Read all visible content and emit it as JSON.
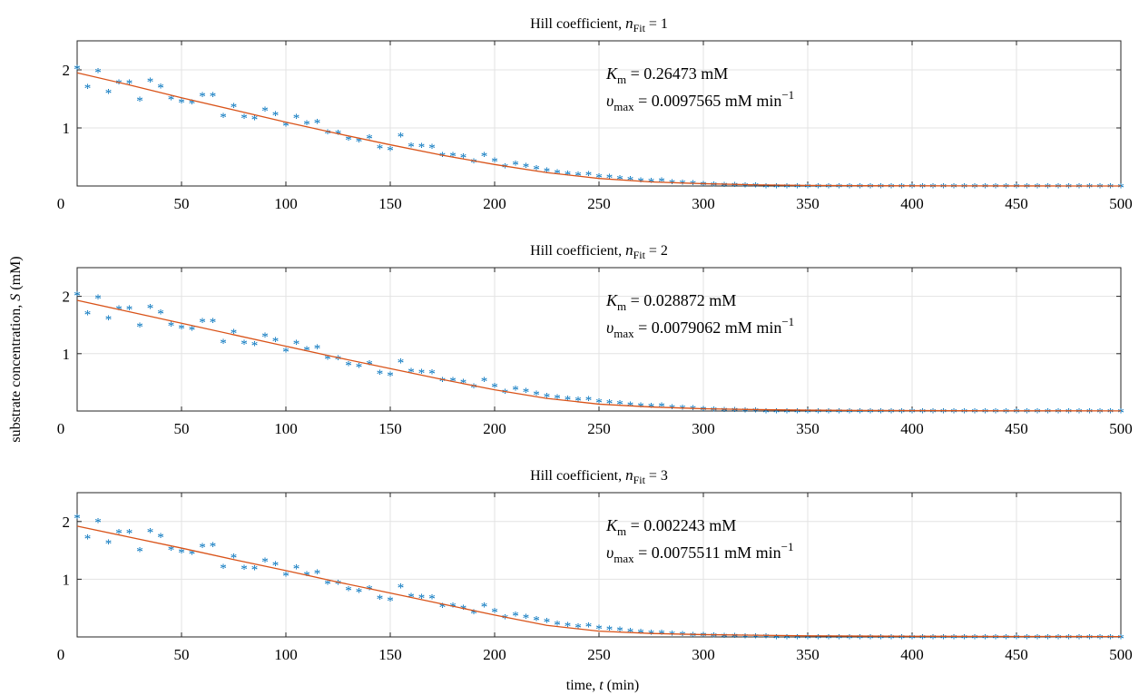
{
  "figure": {
    "ylabel_text": "substrate concentration, ",
    "ylabel_var": "S",
    "ylabel_unit": " (mM)",
    "xlabel_text": "time, ",
    "xlabel_var": "t",
    "xlabel_unit": " (min)"
  },
  "chart_data": [
    {
      "type": "scatter",
      "title_prefix": "Hill coefficient, ",
      "title_var": "n",
      "title_sub": "Fit",
      "title_suffix": " = 1",
      "xlim": [
        0,
        500
      ],
      "ylim": [
        0,
        2.5
      ],
      "xticks": [
        0,
        50,
        100,
        150,
        200,
        250,
        300,
        350,
        400,
        450,
        500
      ],
      "yticks": [
        1,
        2
      ],
      "grid": true,
      "annotation": {
        "km_var": "K",
        "km_sub": "m",
        "km_text": " = 0.26473 mM",
        "vmax_var": "υ",
        "vmax_sub": "max",
        "vmax_text": " = 0.0097565 mM min",
        "vmax_sup": "−1"
      },
      "series": [
        {
          "style": "markers",
          "color": "#0072BD",
          "x": [
            0,
            5,
            10,
            15,
            20,
            25,
            30,
            35,
            40,
            45,
            50,
            55,
            60,
            65,
            70,
            75,
            80,
            85,
            90,
            95,
            100,
            105,
            110,
            115,
            120,
            125,
            130,
            135,
            140,
            145,
            150,
            155,
            160,
            165,
            170,
            175,
            180,
            185,
            190,
            195,
            200,
            205,
            210,
            215,
            220,
            225,
            230,
            235,
            240,
            245,
            250,
            255,
            260,
            265,
            270,
            275,
            280,
            285,
            290,
            295,
            300,
            305,
            310,
            315,
            320,
            325,
            330,
            335,
            340,
            345,
            350,
            355,
            360,
            365,
            370,
            375,
            380,
            385,
            390,
            395,
            400,
            405,
            410,
            415,
            420,
            425,
            430,
            435,
            440,
            445,
            450,
            455,
            460,
            465,
            470,
            475,
            480,
            485,
            490,
            495,
            500
          ],
          "y": [
            2.05,
            1.72,
            1.99,
            1.63,
            1.8,
            1.8,
            1.5,
            1.83,
            1.73,
            1.52,
            1.47,
            1.45,
            1.58,
            1.58,
            1.22,
            1.39,
            1.2,
            1.18,
            1.33,
            1.25,
            1.07,
            1.2,
            1.09,
            1.12,
            0.94,
            0.93,
            0.83,
            0.8,
            0.85,
            0.68,
            0.65,
            0.88,
            0.71,
            0.7,
            0.69,
            0.55,
            0.55,
            0.52,
            0.44,
            0.55,
            0.45,
            0.35,
            0.4,
            0.36,
            0.32,
            0.28,
            0.25,
            0.23,
            0.21,
            0.22,
            0.18,
            0.17,
            0.15,
            0.13,
            0.11,
            0.1,
            0.11,
            0.08,
            0.07,
            0.06,
            0.05,
            0.04,
            0.03,
            0.03,
            0.02,
            0.02,
            0.01,
            0.01,
            0.01,
            0.01,
            0.01,
            0.01,
            0.01,
            0.01,
            0.01,
            0.01,
            0.01,
            0.01,
            0.01,
            0.01,
            0.01,
            0.01,
            0.01,
            0.01,
            0.01,
            0.01,
            0.01,
            0.01,
            0.01,
            0.01,
            0.01,
            0.01,
            0.01,
            0.01,
            0.01,
            0.01,
            0.01,
            0.01,
            0.01,
            0.01,
            0.01
          ]
        },
        {
          "style": "line",
          "color": "#D95319",
          "x": [
            0,
            25,
            50,
            75,
            100,
            125,
            150,
            175,
            200,
            225,
            250,
            275,
            300,
            325,
            350,
            375,
            400,
            425,
            450,
            475,
            500
          ],
          "y": [
            1.95,
            1.74,
            1.52,
            1.31,
            1.1,
            0.9,
            0.71,
            0.53,
            0.37,
            0.23,
            0.13,
            0.07,
            0.04,
            0.02,
            0.01,
            0.005,
            0.003,
            0.002,
            0.001,
            0.0005,
            0.0003
          ]
        }
      ]
    },
    {
      "type": "scatter",
      "title_prefix": "Hill coefficient, ",
      "title_var": "n",
      "title_sub": "Fit",
      "title_suffix": " = 2",
      "xlim": [
        0,
        500
      ],
      "ylim": [
        0,
        2.5
      ],
      "xticks": [
        0,
        50,
        100,
        150,
        200,
        250,
        300,
        350,
        400,
        450,
        500
      ],
      "yticks": [
        1,
        2
      ],
      "grid": true,
      "annotation": {
        "km_var": "K",
        "km_sub": "m",
        "km_text": " = 0.028872 mM",
        "vmax_var": "υ",
        "vmax_sub": "max",
        "vmax_text": " = 0.0079062 mM min",
        "vmax_sup": "−1"
      },
      "series": [
        {
          "style": "markers",
          "color": "#0072BD",
          "x": [
            0,
            5,
            10,
            15,
            20,
            25,
            30,
            35,
            40,
            45,
            50,
            55,
            60,
            65,
            70,
            75,
            80,
            85,
            90,
            95,
            100,
            105,
            110,
            115,
            120,
            125,
            130,
            135,
            140,
            145,
            150,
            155,
            160,
            165,
            170,
            175,
            180,
            185,
            190,
            195,
            200,
            205,
            210,
            215,
            220,
            225,
            230,
            235,
            240,
            245,
            250,
            255,
            260,
            265,
            270,
            275,
            280,
            285,
            290,
            295,
            300,
            305,
            310,
            315,
            320,
            325,
            330,
            335,
            340,
            345,
            350,
            355,
            360,
            365,
            370,
            375,
            380,
            385,
            390,
            395,
            400,
            405,
            410,
            415,
            420,
            425,
            430,
            435,
            440,
            445,
            450,
            455,
            460,
            465,
            470,
            475,
            480,
            485,
            490,
            495,
            500
          ],
          "y": [
            2.05,
            1.72,
            1.99,
            1.63,
            1.8,
            1.8,
            1.5,
            1.83,
            1.73,
            1.52,
            1.47,
            1.45,
            1.58,
            1.58,
            1.22,
            1.39,
            1.2,
            1.18,
            1.33,
            1.25,
            1.07,
            1.2,
            1.09,
            1.12,
            0.94,
            0.93,
            0.83,
            0.8,
            0.85,
            0.68,
            0.65,
            0.88,
            0.71,
            0.7,
            0.69,
            0.55,
            0.55,
            0.52,
            0.44,
            0.55,
            0.45,
            0.35,
            0.4,
            0.36,
            0.32,
            0.28,
            0.25,
            0.23,
            0.21,
            0.22,
            0.18,
            0.17,
            0.15,
            0.13,
            0.11,
            0.1,
            0.11,
            0.08,
            0.07,
            0.06,
            0.05,
            0.04,
            0.03,
            0.03,
            0.02,
            0.02,
            0.01,
            0.01,
            0.01,
            0.01,
            0.01,
            0.01,
            0.01,
            0.01,
            0.01,
            0.01,
            0.01,
            0.01,
            0.01,
            0.01,
            0.01,
            0.01,
            0.01,
            0.01,
            0.01,
            0.01,
            0.01,
            0.01,
            0.01,
            0.01,
            0.01,
            0.01,
            0.01,
            0.01,
            0.01,
            0.01,
            0.01,
            0.01,
            0.01,
            0.01,
            0.01
          ]
        },
        {
          "style": "line",
          "color": "#D95319",
          "x": [
            0,
            25,
            50,
            75,
            100,
            125,
            150,
            175,
            200,
            225,
            250,
            275,
            300,
            325,
            350,
            375,
            400,
            425,
            450,
            475,
            500
          ],
          "y": [
            1.93,
            1.73,
            1.53,
            1.33,
            1.13,
            0.93,
            0.74,
            0.55,
            0.37,
            0.22,
            0.12,
            0.07,
            0.04,
            0.025,
            0.015,
            0.01,
            0.007,
            0.005,
            0.004,
            0.003,
            0.002
          ]
        }
      ]
    },
    {
      "type": "scatter",
      "title_prefix": "Hill coefficient, ",
      "title_var": "n",
      "title_sub": "Fit",
      "title_suffix": " = 3",
      "xlim": [
        0,
        500
      ],
      "ylim": [
        0,
        2.5
      ],
      "xticks": [
        0,
        50,
        100,
        150,
        200,
        250,
        300,
        350,
        400,
        450,
        500
      ],
      "yticks": [
        1,
        2
      ],
      "grid": true,
      "annotation": {
        "km_var": "K",
        "km_sub": "m",
        "km_text": " = 0.002243 mM",
        "vmax_var": "υ",
        "vmax_sub": "max",
        "vmax_text": " = 0.0075511 mM min",
        "vmax_sup": "−1"
      },
      "series": [
        {
          "style": "markers",
          "color": "#0072BD",
          "x": [
            0,
            5,
            10,
            15,
            20,
            25,
            30,
            35,
            40,
            45,
            50,
            55,
            60,
            65,
            70,
            75,
            80,
            85,
            90,
            95,
            100,
            105,
            110,
            115,
            120,
            125,
            130,
            135,
            140,
            145,
            150,
            155,
            160,
            165,
            170,
            175,
            180,
            185,
            190,
            195,
            200,
            205,
            210,
            215,
            220,
            225,
            230,
            235,
            240,
            245,
            250,
            255,
            260,
            265,
            270,
            275,
            280,
            285,
            290,
            295,
            300,
            305,
            310,
            315,
            320,
            325,
            330,
            335,
            340,
            345,
            350,
            355,
            360,
            365,
            370,
            375,
            380,
            385,
            390,
            395,
            400,
            405,
            410,
            415,
            420,
            425,
            430,
            435,
            440,
            445,
            450,
            455,
            460,
            465,
            470,
            475,
            480,
            485,
            490,
            495,
            500
          ],
          "y": [
            2.09,
            1.74,
            2.02,
            1.65,
            1.83,
            1.83,
            1.52,
            1.85,
            1.76,
            1.54,
            1.49,
            1.47,
            1.59,
            1.6,
            1.23,
            1.41,
            1.21,
            1.2,
            1.34,
            1.27,
            1.09,
            1.22,
            1.1,
            1.13,
            0.95,
            0.95,
            0.84,
            0.81,
            0.86,
            0.69,
            0.66,
            0.89,
            0.72,
            0.71,
            0.7,
            0.55,
            0.56,
            0.52,
            0.44,
            0.56,
            0.46,
            0.35,
            0.4,
            0.36,
            0.32,
            0.29,
            0.24,
            0.22,
            0.2,
            0.21,
            0.17,
            0.16,
            0.14,
            0.12,
            0.1,
            0.09,
            0.09,
            0.07,
            0.06,
            0.05,
            0.05,
            0.04,
            0.03,
            0.03,
            0.02,
            0.02,
            0.02,
            0.01,
            0.01,
            0.01,
            0.01,
            0.01,
            0.01,
            0.01,
            0.01,
            0.01,
            0.01,
            0.01,
            0.01,
            0.01,
            0.01,
            0.01,
            0.01,
            0.01,
            0.01,
            0.01,
            0.01,
            0.01,
            0.01,
            0.01,
            0.01,
            0.01,
            0.01,
            0.01,
            0.01,
            0.01,
            0.01,
            0.01,
            0.01,
            0.01,
            0.01
          ]
        },
        {
          "style": "line",
          "color": "#D95319",
          "x": [
            0,
            25,
            50,
            75,
            100,
            125,
            150,
            175,
            200,
            225,
            250,
            275,
            300,
            325,
            350,
            375,
            400,
            425,
            450,
            475,
            500
          ],
          "y": [
            1.92,
            1.73,
            1.54,
            1.34,
            1.15,
            0.95,
            0.76,
            0.57,
            0.38,
            0.2,
            0.1,
            0.06,
            0.04,
            0.03,
            0.02,
            0.015,
            0.012,
            0.01,
            0.008,
            0.007,
            0.006
          ]
        }
      ]
    }
  ]
}
